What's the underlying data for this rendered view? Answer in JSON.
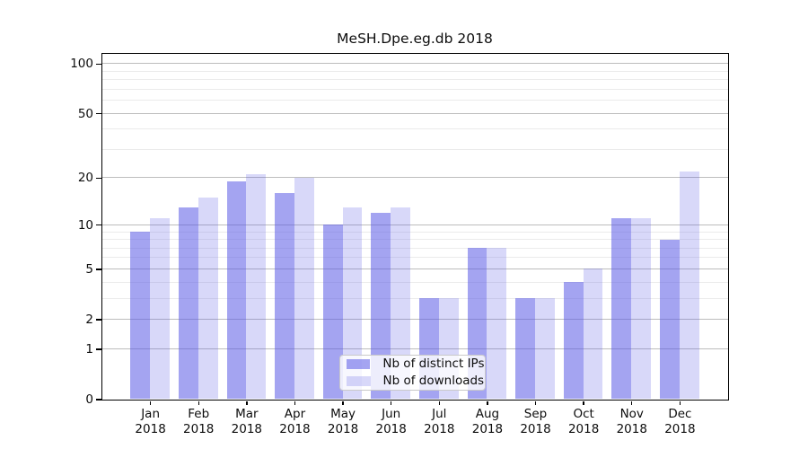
{
  "title": "MeSH.Dpe.eg.db 2018",
  "chart_data": {
    "type": "bar",
    "title": "MeSH.Dpe.eg.db 2018",
    "categories": [
      "Jan 2018",
      "Feb 2018",
      "Mar 2018",
      "Apr 2018",
      "May 2018",
      "Jun 2018",
      "Jul 2018",
      "Aug 2018",
      "Sep 2018",
      "Oct 2018",
      "Nov 2018",
      "Dec 2018"
    ],
    "series": [
      {
        "name": "Nb of distinct IPs",
        "values": [
          9,
          13,
          19,
          16,
          10,
          12,
          3,
          7,
          3,
          4,
          11,
          8
        ]
      },
      {
        "name": "Nb of downloads",
        "values": [
          11,
          15,
          21,
          20,
          13,
          13,
          3,
          7,
          3,
          5,
          11,
          22
        ]
      }
    ],
    "yscale": "log1p",
    "ylim": [
      0,
      115
    ],
    "yticks_major": [
      0,
      1,
      2,
      5,
      10,
      20,
      50,
      100
    ],
    "yticks_minor": [
      3,
      4,
      6,
      7,
      8,
      9,
      30,
      40,
      60,
      70,
      80,
      90
    ],
    "grid": true,
    "legend_position": "lower center"
  },
  "colors": {
    "ips_fill": "rgba(90,90,230,0.55)",
    "downloads_fill": "rgba(90,90,230,0.24)",
    "grid_major": "#bdbdbd",
    "grid_minor": "#ebebeb",
    "axis": "#000000",
    "legend_border": "#c9c9c9",
    "legend_bg": "rgba(255,255,255,0.8)"
  }
}
